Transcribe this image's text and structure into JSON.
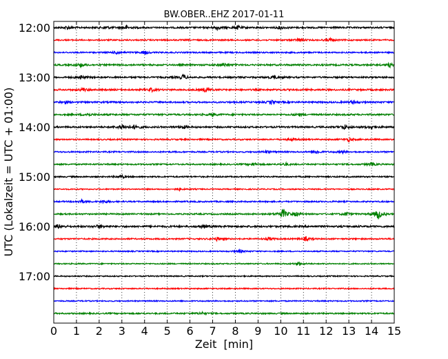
{
  "chart_data": {
    "type": "line",
    "title": "BW.OBER..EHZ 2017-01-11",
    "xlabel": "Zeit  [min]",
    "ylabel": "UTC (Lokalzeit = UTC + 01:00)",
    "xlim": [
      0,
      15
    ],
    "x_ticks": [
      "0",
      "1",
      "2",
      "3",
      "4",
      "5",
      "6",
      "7",
      "8",
      "9",
      "10",
      "11",
      "12",
      "13",
      "14",
      "15"
    ],
    "y_tick_labels": [
      "12:00",
      "13:00",
      "14:00",
      "15:00",
      "16:00",
      "17:00"
    ],
    "grid": true,
    "row_interval_minutes": 15,
    "rows": [
      {
        "time": "12:00",
        "color": "#000000",
        "amplitude": 0.35,
        "bursts": [
          {
            "t": 0.6,
            "a": 0.5
          },
          {
            "t": 2.3,
            "a": 0.45
          },
          {
            "t": 3.2,
            "a": 0.5
          },
          {
            "t": 7.2,
            "a": 0.55
          },
          {
            "t": 8.1,
            "a": 0.5
          },
          {
            "t": 10.0,
            "a": 0.45
          }
        ]
      },
      {
        "time": "12:15",
        "color": "#ff0000",
        "amplitude": 0.3,
        "bursts": [
          {
            "t": 10.8,
            "a": 0.5
          },
          {
            "t": 12.2,
            "a": 0.45
          }
        ]
      },
      {
        "time": "12:30",
        "color": "#0000ff",
        "amplitude": 0.3,
        "bursts": [
          {
            "t": 2.8,
            "a": 0.55
          },
          {
            "t": 4.0,
            "a": 0.5
          }
        ]
      },
      {
        "time": "12:45",
        "color": "#008000",
        "amplitude": 0.35,
        "bursts": [
          {
            "t": 1.2,
            "a": 0.5
          },
          {
            "t": 7.5,
            "a": 0.45
          },
          {
            "t": 14.8,
            "a": 0.5
          }
        ]
      },
      {
        "time": "13:00",
        "color": "#000000",
        "amplitude": 0.35,
        "bursts": [
          {
            "t": 1.2,
            "a": 0.5
          },
          {
            "t": 5.7,
            "a": 0.7
          },
          {
            "t": 9.7,
            "a": 0.55
          }
        ]
      },
      {
        "time": "13:15",
        "color": "#ff0000",
        "amplitude": 0.35,
        "bursts": [
          {
            "t": 1.3,
            "a": 0.5
          },
          {
            "t": 4.3,
            "a": 0.55
          },
          {
            "t": 6.7,
            "a": 0.65
          }
        ]
      },
      {
        "time": "13:30",
        "color": "#0000ff",
        "amplitude": 0.35,
        "bursts": [
          {
            "t": 0.5,
            "a": 0.45
          },
          {
            "t": 9.6,
            "a": 0.5
          },
          {
            "t": 13.2,
            "a": 0.5
          }
        ]
      },
      {
        "time": "13:45",
        "color": "#008000",
        "amplitude": 0.35,
        "bursts": [
          {
            "t": 1.5,
            "a": 0.45
          },
          {
            "t": 7.0,
            "a": 0.45
          },
          {
            "t": 10.8,
            "a": 0.4
          }
        ]
      },
      {
        "time": "14:00",
        "color": "#000000",
        "amplitude": 0.35,
        "bursts": [
          {
            "t": 3.0,
            "a": 0.8
          },
          {
            "t": 3.6,
            "a": 0.75
          },
          {
            "t": 5.7,
            "a": 0.5
          },
          {
            "t": 12.8,
            "a": 0.7
          },
          {
            "t": 14.0,
            "a": 0.6
          }
        ]
      },
      {
        "time": "14:15",
        "color": "#ff0000",
        "amplitude": 0.3,
        "bursts": [
          {
            "t": 10.5,
            "a": 0.45
          },
          {
            "t": 13.0,
            "a": 0.55
          }
        ]
      },
      {
        "time": "14:30",
        "color": "#0000ff",
        "amplitude": 0.3,
        "bursts": [
          {
            "t": 9.4,
            "a": 0.4
          },
          {
            "t": 11.6,
            "a": 0.55
          },
          {
            "t": 12.7,
            "a": 0.4
          }
        ]
      },
      {
        "time": "14:45",
        "color": "#008000",
        "amplitude": 0.3,
        "bursts": [
          {
            "t": 8.8,
            "a": 0.45
          },
          {
            "t": 10.2,
            "a": 0.4
          },
          {
            "t": 14.0,
            "a": 0.5
          }
        ]
      },
      {
        "time": "15:00",
        "color": "#000000",
        "amplitude": 0.3,
        "bursts": [
          {
            "t": 3.0,
            "a": 0.45
          }
        ]
      },
      {
        "time": "15:15",
        "color": "#ff0000",
        "amplitude": 0.25,
        "bursts": [
          {
            "t": 5.5,
            "a": 0.35
          }
        ]
      },
      {
        "time": "15:30",
        "color": "#0000ff",
        "amplitude": 0.3,
        "bursts": [
          {
            "t": 1.2,
            "a": 0.55
          },
          {
            "t": 2.2,
            "a": 0.5
          }
        ]
      },
      {
        "time": "15:45",
        "color": "#008000",
        "amplitude": 0.3,
        "bursts": [
          {
            "t": 10.1,
            "a": 1.4
          },
          {
            "t": 10.7,
            "a": 0.6
          },
          {
            "t": 12.9,
            "a": 0.5
          },
          {
            "t": 14.3,
            "a": 1.6
          }
        ]
      },
      {
        "time": "16:00",
        "color": "#000000",
        "amplitude": 0.4,
        "bursts": [
          {
            "t": 0.2,
            "a": 0.55
          },
          {
            "t": 2.0,
            "a": 0.5
          },
          {
            "t": 6.6,
            "a": 0.45
          }
        ]
      },
      {
        "time": "16:15",
        "color": "#ff0000",
        "amplitude": 0.3,
        "bursts": [
          {
            "t": 7.2,
            "a": 0.5
          },
          {
            "t": 9.5,
            "a": 0.45
          },
          {
            "t": 11.1,
            "a": 0.6
          }
        ]
      },
      {
        "time": "16:30",
        "color": "#0000ff",
        "amplitude": 0.25,
        "bursts": [
          {
            "t": 8.2,
            "a": 0.45
          }
        ]
      },
      {
        "time": "16:45",
        "color": "#008000",
        "amplitude": 0.25,
        "bursts": [
          {
            "t": 10.8,
            "a": 0.5
          }
        ]
      },
      {
        "time": "17:00",
        "color": "#000000",
        "amplitude": 0.25,
        "bursts": []
      },
      {
        "time": "17:15",
        "color": "#ff0000",
        "amplitude": 0.25,
        "bursts": []
      },
      {
        "time": "17:30",
        "color": "#0000ff",
        "amplitude": 0.25,
        "bursts": []
      },
      {
        "time": "17:45",
        "color": "#008000",
        "amplitude": 0.3,
        "bursts": [
          {
            "t": 6.5,
            "a": 0.4
          }
        ]
      }
    ]
  }
}
